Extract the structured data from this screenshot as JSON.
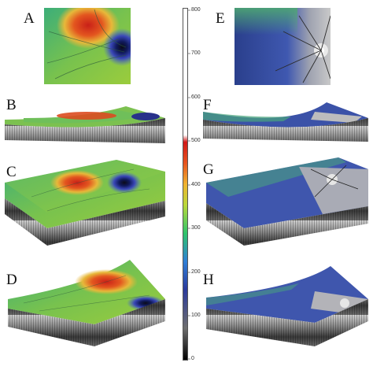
{
  "panels": {
    "A": "A",
    "B": "B",
    "C": "C",
    "D": "D",
    "E": "E",
    "F": "F",
    "G": "G",
    "H": "H"
  },
  "colorbar": {
    "ticks": [
      "800",
      "700",
      "600",
      "500",
      "400",
      "300",
      "200",
      "100",
      "0"
    ],
    "colors": [
      "#000000",
      "#6e6e6e",
      "#2b3a9c",
      "#2f7fd6",
      "#2fc46b",
      "#b9d83a",
      "#f0b330",
      "#e6541f",
      "#d01818",
      "#ffffff"
    ]
  }
}
